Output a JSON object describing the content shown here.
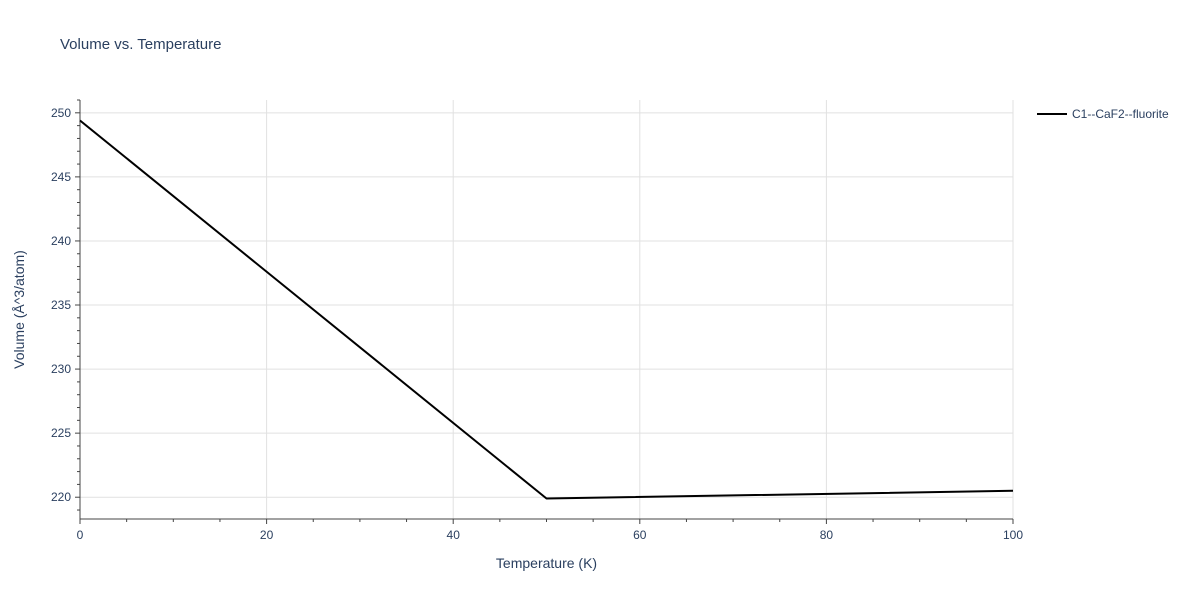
{
  "chart_data": {
    "type": "line",
    "title": "Volume vs. Temperature",
    "xlabel": "Temperature (K)",
    "ylabel": "Volume (Å^3/atom)",
    "xlim": [
      0,
      100
    ],
    "ylim": [
      218.3,
      251.0
    ],
    "x_ticks": [
      0,
      20,
      40,
      60,
      80,
      100
    ],
    "y_ticks": [
      220,
      225,
      230,
      235,
      240,
      245,
      250
    ],
    "grid": true,
    "legend_position": "top-right",
    "series": [
      {
        "name": "C1--CaF2--fluorite",
        "color": "#000000",
        "x": [
          0,
          50,
          100
        ],
        "y": [
          249.4,
          219.9,
          220.5
        ]
      }
    ]
  }
}
